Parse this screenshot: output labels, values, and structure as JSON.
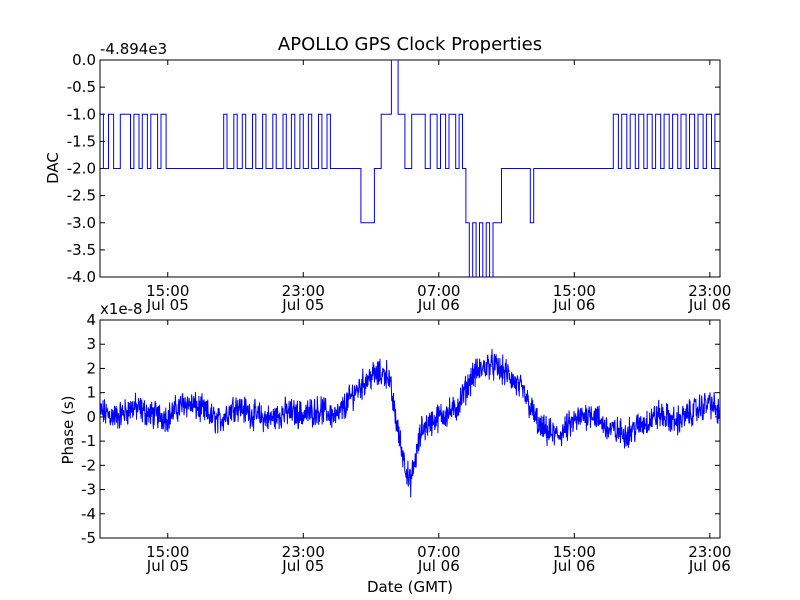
{
  "title": "APOLLO GPS Clock Properties",
  "chart_data": [
    {
      "type": "line",
      "panel": "top",
      "ylabel": "DAC",
      "xlabel": "",
      "offset_label": "-4.894e3",
      "ylim": [
        -4.0,
        0.0
      ],
      "yticks": [
        "0.0",
        "-0.5",
        "-1.0",
        "-1.5",
        "-2.0",
        "-2.5",
        "-3.0",
        "-3.5",
        "-4.0"
      ],
      "xlim_hours": [
        11.0,
        47.6
      ],
      "x_tick_hours": [
        15,
        23,
        31,
        39,
        47
      ],
      "x_ticks": [
        {
          "time": "15:00",
          "date": "Jul 05"
        },
        {
          "time": "23:00",
          "date": "Jul 05"
        },
        {
          "time": "07:00",
          "date": "Jul 06"
        },
        {
          "time": "15:00",
          "date": "Jul 06"
        },
        {
          "time": "23:00",
          "date": "Jul 06"
        }
      ],
      "color": "#0000ff",
      "series": [
        {
          "x_hours": [
            11.0,
            11.2,
            11.5,
            11.8,
            12.2,
            12.4,
            12.8,
            13.0,
            13.3,
            13.5,
            13.8,
            14.0,
            14.4,
            14.6,
            14.9,
            15.1,
            15.5,
            15.7,
            16.0,
            16.2,
            16.5,
            17.0,
            17.5,
            18.0,
            18.3,
            18.5,
            18.9,
            19.1,
            19.4,
            19.6,
            20.0,
            20.2,
            20.6,
            20.8,
            21.2,
            21.4,
            21.8,
            22.0,
            22.3,
            22.5,
            22.8,
            23.0,
            23.3,
            23.5,
            23.9,
            24.1,
            24.4,
            24.6,
            25.0,
            25.2,
            25.6,
            25.8,
            26.2,
            26.4,
            26.7,
            27.0,
            27.2,
            27.6,
            28.0,
            28.2,
            28.6,
            29.0,
            29.4,
            29.7,
            30.2,
            30.5,
            30.9,
            31.1,
            31.4,
            31.6,
            32.0,
            32.2,
            32.4,
            32.6,
            32.8,
            33.0,
            33.2,
            33.4,
            33.6,
            33.8,
            34.0,
            34.2,
            34.5,
            34.7,
            35.2,
            35.4,
            35.8,
            36.0,
            36.4,
            36.6,
            37.0,
            37.5,
            38.0,
            38.5,
            39.0,
            39.5,
            40.0,
            40.5,
            41.0,
            41.3,
            41.6,
            41.8,
            42.1,
            42.3,
            42.6,
            42.8,
            43.1,
            43.3,
            43.6,
            43.8,
            44.1,
            44.3,
            44.6,
            44.8,
            45.1,
            45.3,
            45.6,
            45.8,
            46.1,
            46.3,
            46.6,
            46.8,
            47.1,
            47.3,
            47.6
          ],
          "values": [
            -1,
            -2,
            -1,
            -2,
            -1,
            -1,
            -2,
            -1,
            -2,
            -1,
            -2,
            -1,
            -2,
            -1,
            -2,
            -2,
            -2,
            -2,
            -2,
            -2,
            -2,
            -2,
            -2,
            -2,
            -1,
            -2,
            -1,
            -2,
            -1,
            -2,
            -1,
            -2,
            -1,
            -2,
            -1,
            -2,
            -1,
            -2,
            -1,
            -2,
            -1,
            -2,
            -1,
            -2,
            -1,
            -2,
            -1,
            -2,
            -2,
            -2,
            -2,
            -2,
            -2,
            -3,
            -3,
            -3,
            -2,
            -1,
            -1,
            0,
            -1,
            -2,
            -1,
            -1,
            -2,
            -1,
            -2,
            -1,
            -2,
            -1,
            -2,
            -1,
            -2,
            -3,
            -4,
            -3,
            -4,
            -3,
            -4,
            -3,
            -4,
            -3,
            -3,
            -2,
            -2,
            -2,
            -2,
            -2,
            -3,
            -2,
            -2,
            -2,
            -2,
            -2,
            -2,
            -2,
            -2,
            -2,
            -2,
            -1,
            -2,
            -1,
            -2,
            -1,
            -2,
            -1,
            -2,
            -1,
            -2,
            -1,
            -2,
            -1,
            -2,
            -1,
            -2,
            -1,
            -2,
            -1,
            -2,
            -1,
            -2,
            -1,
            -2,
            -1,
            -2
          ]
        }
      ]
    },
    {
      "type": "line",
      "panel": "bottom",
      "ylabel": "Phase (s)",
      "xlabel": "Date (GMT)",
      "offset_label": "x1e-8",
      "ylim": [
        -5,
        4
      ],
      "yticks": [
        "4",
        "3",
        "2",
        "1",
        "0",
        "-1",
        "-2",
        "-3",
        "-4",
        "-5"
      ],
      "xlim_hours": [
        11.0,
        47.6
      ],
      "x_tick_hours": [
        15,
        23,
        31,
        39,
        47
      ],
      "x_ticks": [
        {
          "time": "15:00",
          "date": "Jul 05"
        },
        {
          "time": "23:00",
          "date": "Jul 05"
        },
        {
          "time": "07:00",
          "date": "Jul 06"
        },
        {
          "time": "15:00",
          "date": "Jul 06"
        },
        {
          "time": "23:00",
          "date": "Jul 06"
        }
      ],
      "color": "#0000ff",
      "series": [
        {
          "x_hours": [
            11.0,
            12.0,
            13.0,
            14.0,
            15.0,
            16.0,
            17.0,
            18.0,
            19.0,
            20.0,
            21.0,
            22.0,
            23.0,
            24.0,
            25.0,
            26.0,
            27.0,
            28.0,
            28.7,
            29.3,
            30.0,
            31.0,
            32.0,
            33.0,
            34.0,
            35.0,
            36.0,
            37.0,
            38.0,
            39.0,
            40.0,
            41.0,
            42.0,
            43.0,
            44.0,
            45.0,
            46.0,
            47.0,
            47.6
          ],
          "values": [
            0.2,
            0.0,
            0.4,
            0.1,
            0.0,
            0.6,
            0.3,
            -0.2,
            0.5,
            0.1,
            -0.1,
            0.2,
            0.1,
            0.3,
            0.0,
            1.0,
            1.7,
            1.8,
            -1.0,
            -2.8,
            -0.5,
            0.0,
            0.3,
            1.7,
            2.2,
            1.8,
            1.0,
            -0.5,
            -0.8,
            -0.2,
            0.2,
            -0.5,
            -0.7,
            -0.3,
            0.1,
            -0.2,
            0.2,
            0.6,
            0.1
          ],
          "noise_amplitude": 0.9
        }
      ]
    }
  ]
}
